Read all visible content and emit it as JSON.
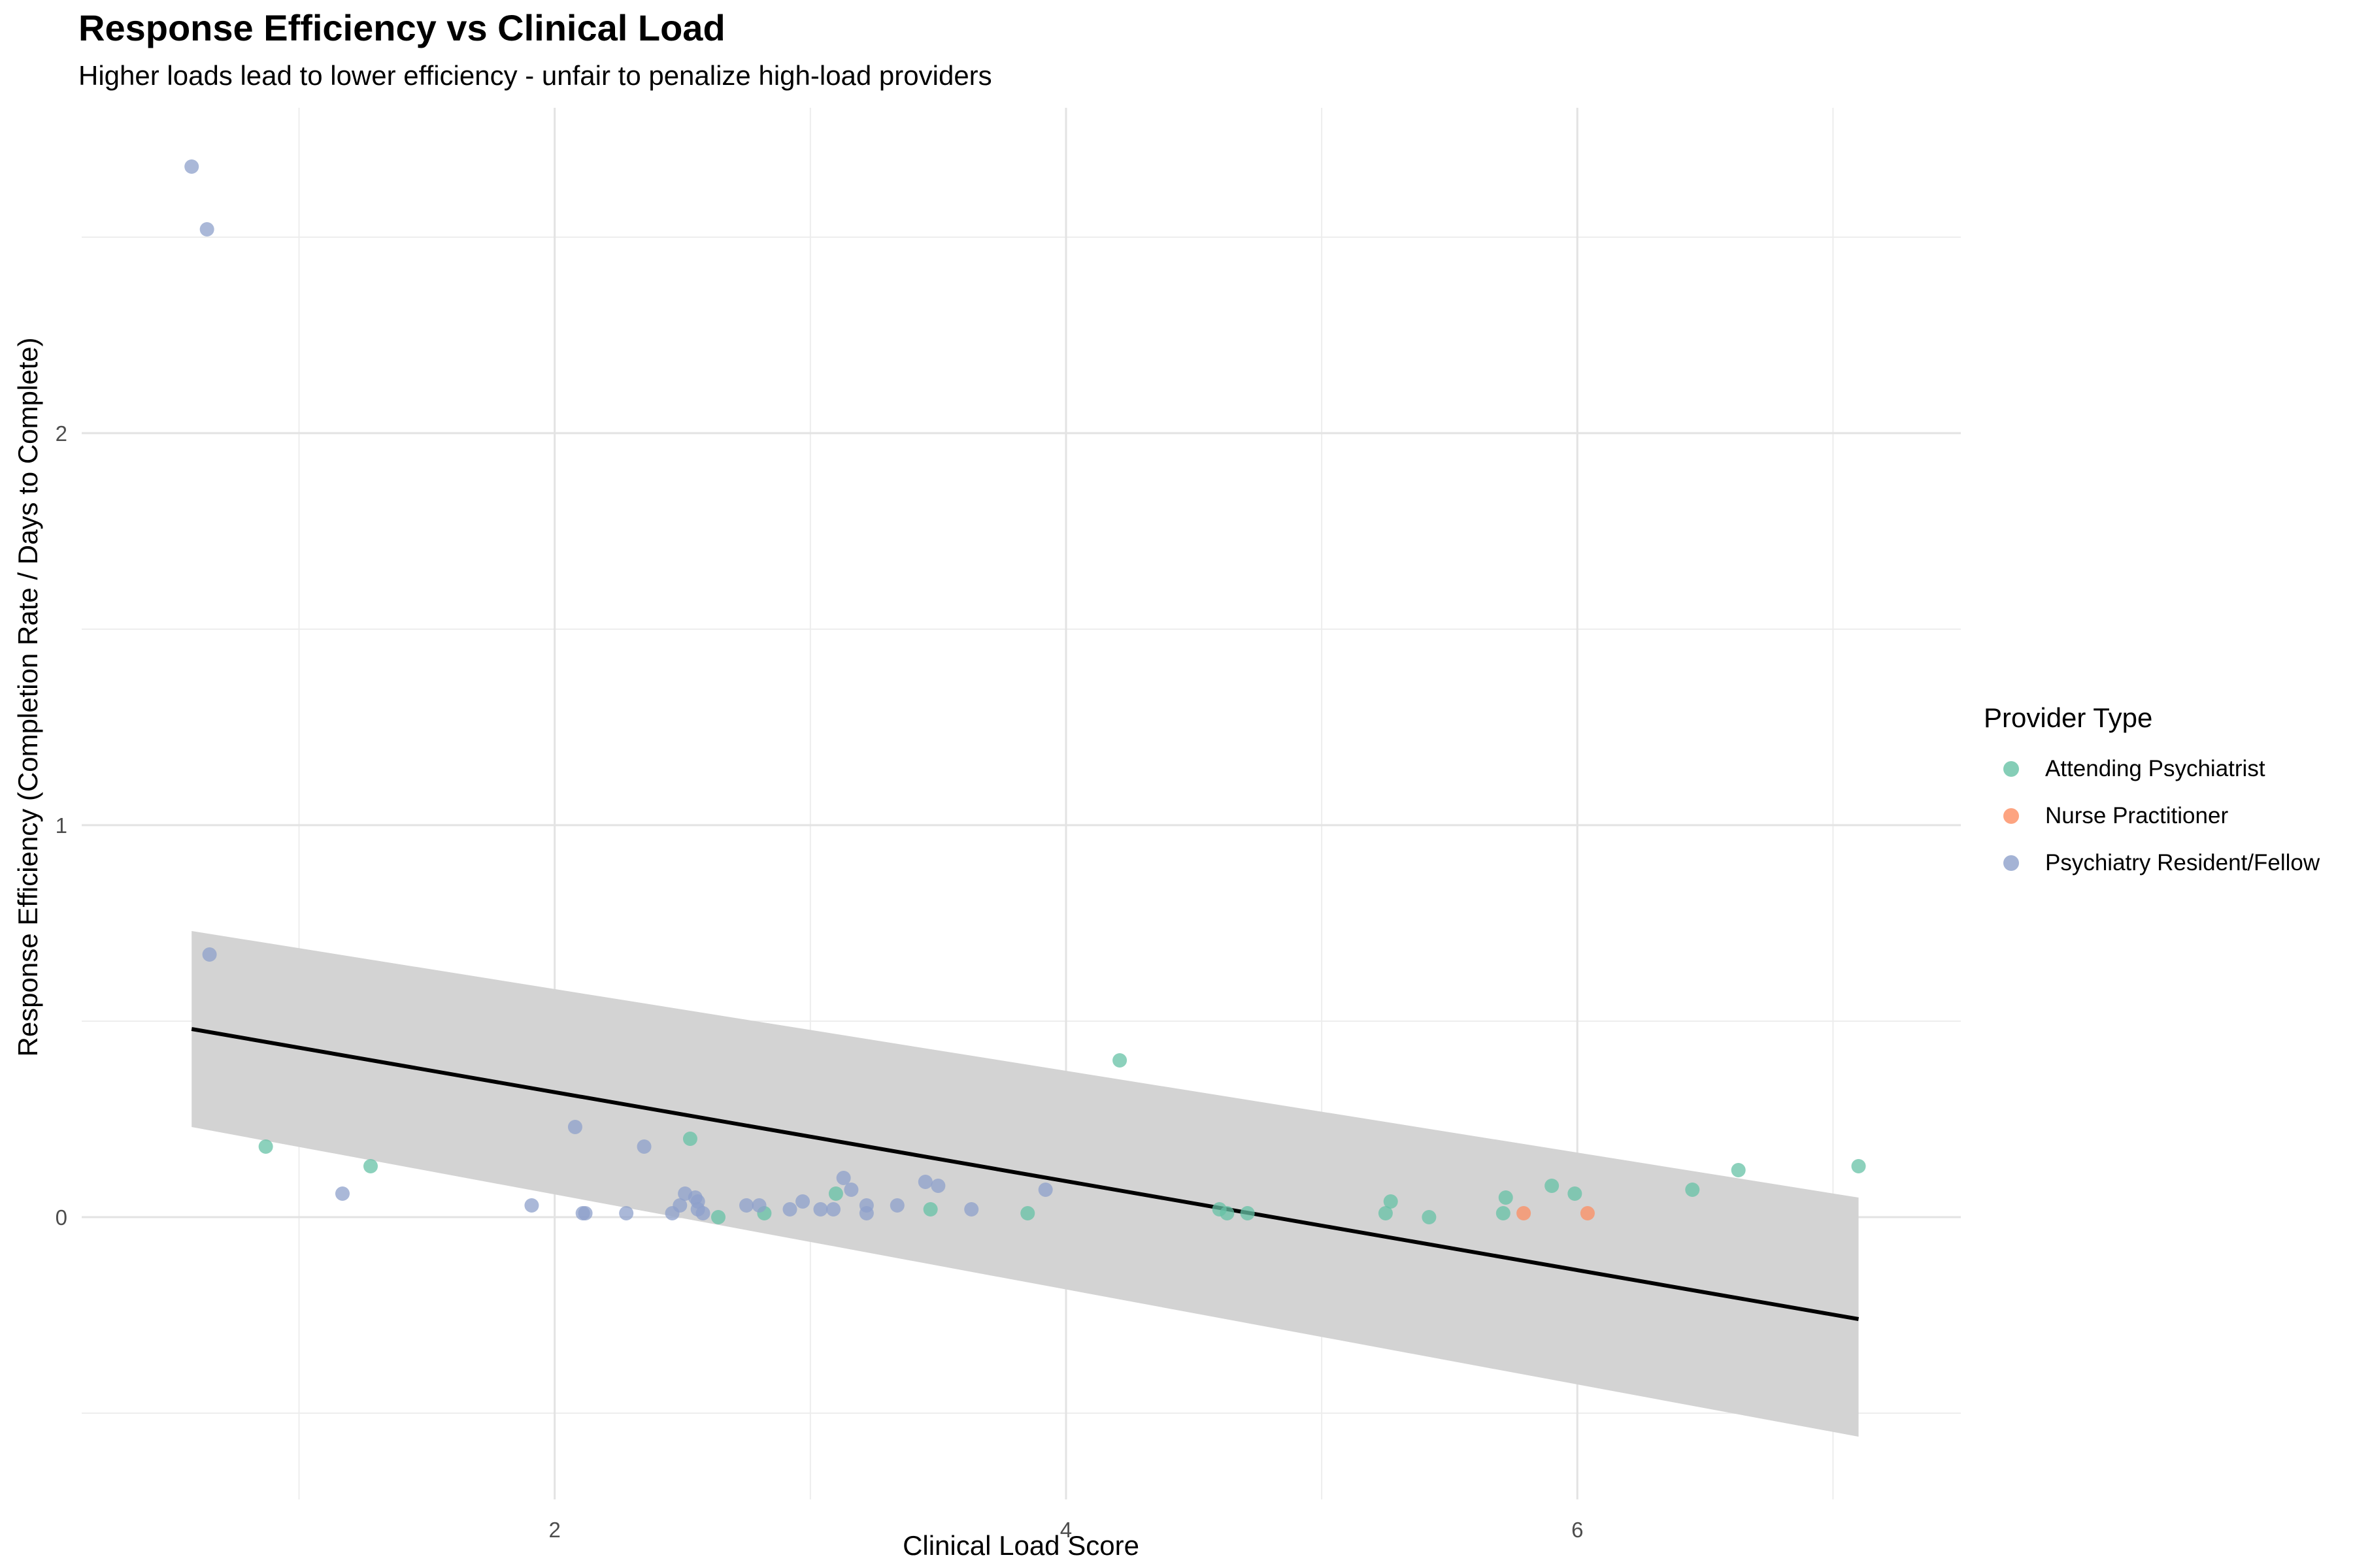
{
  "chart_data": {
    "type": "scatter",
    "title": "Response Efficiency vs Clinical Load",
    "subtitle": "Higher loads lead to lower efficiency - unfair to penalize high-load providers",
    "xlabel": "Clinical Load Score",
    "ylabel": "Response Efficiency (Completion Rate / Days to Complete)",
    "xlim": [
      0.15,
      7.5
    ],
    "ylim": [
      -0.72,
      2.83
    ],
    "x_ticks": [
      2,
      4,
      6
    ],
    "x_tick_labels": [
      "2",
      "4",
      "6"
    ],
    "x_minor_ticks": [
      1,
      3,
      5,
      7
    ],
    "y_ticks": [
      0,
      1,
      2
    ],
    "y_tick_labels": [
      "0",
      "1",
      "2"
    ],
    "y_minor_ticks": [
      -0.5,
      0.5,
      1.5,
      2.5
    ],
    "grid": true,
    "legend": {
      "title": "Provider Type",
      "placement": "right"
    },
    "series": [
      {
        "name": "Attending Psychiatrist",
        "color": "#66c2a5",
        "points": [
          {
            "x": 0.87,
            "y": 0.18
          },
          {
            "x": 1.28,
            "y": 0.13
          },
          {
            "x": 2.53,
            "y": 0.2
          },
          {
            "x": 2.64,
            "y": 0.0
          },
          {
            "x": 2.82,
            "y": 0.01
          },
          {
            "x": 3.1,
            "y": 0.06
          },
          {
            "x": 3.47,
            "y": 0.02
          },
          {
            "x": 3.85,
            "y": 0.01
          },
          {
            "x": 4.21,
            "y": 0.4
          },
          {
            "x": 4.6,
            "y": 0.02
          },
          {
            "x": 4.63,
            "y": 0.01
          },
          {
            "x": 4.71,
            "y": 0.01
          },
          {
            "x": 5.25,
            "y": 0.01
          },
          {
            "x": 5.27,
            "y": 0.04
          },
          {
            "x": 5.42,
            "y": 0.0
          },
          {
            "x": 5.71,
            "y": 0.01
          },
          {
            "x": 5.72,
            "y": 0.05
          },
          {
            "x": 5.9,
            "y": 0.08
          },
          {
            "x": 5.99,
            "y": 0.06
          },
          {
            "x": 6.45,
            "y": 0.07
          },
          {
            "x": 6.63,
            "y": 0.12
          },
          {
            "x": 7.1,
            "y": 0.13
          }
        ]
      },
      {
        "name": "Nurse Practitioner",
        "color": "#fc8d62",
        "points": [
          {
            "x": 5.79,
            "y": 0.01
          },
          {
            "x": 6.04,
            "y": 0.01
          }
        ]
      },
      {
        "name": "Psychiatry Resident/Fellow",
        "color": "#8da0cb",
        "points": [
          {
            "x": 0.58,
            "y": 2.68
          },
          {
            "x": 0.64,
            "y": 2.52
          },
          {
            "x": 0.65,
            "y": 0.67
          },
          {
            "x": 1.17,
            "y": 0.06
          },
          {
            "x": 1.91,
            "y": 0.03
          },
          {
            "x": 2.08,
            "y": 0.23
          },
          {
            "x": 2.11,
            "y": 0.01
          },
          {
            "x": 2.12,
            "y": 0.01
          },
          {
            "x": 2.28,
            "y": 0.01
          },
          {
            "x": 2.35,
            "y": 0.18
          },
          {
            "x": 2.46,
            "y": 0.01
          },
          {
            "x": 2.49,
            "y": 0.03
          },
          {
            "x": 2.51,
            "y": 0.06
          },
          {
            "x": 2.55,
            "y": 0.05
          },
          {
            "x": 2.56,
            "y": 0.04
          },
          {
            "x": 2.56,
            "y": 0.02
          },
          {
            "x": 2.58,
            "y": 0.01
          },
          {
            "x": 2.75,
            "y": 0.03
          },
          {
            "x": 2.8,
            "y": 0.03
          },
          {
            "x": 2.92,
            "y": 0.02
          },
          {
            "x": 2.97,
            "y": 0.04
          },
          {
            "x": 3.04,
            "y": 0.02
          },
          {
            "x": 3.09,
            "y": 0.02
          },
          {
            "x": 3.13,
            "y": 0.1
          },
          {
            "x": 3.16,
            "y": 0.07
          },
          {
            "x": 3.22,
            "y": 0.01
          },
          {
            "x": 3.22,
            "y": 0.03
          },
          {
            "x": 3.34,
            "y": 0.03
          },
          {
            "x": 3.45,
            "y": 0.09
          },
          {
            "x": 3.5,
            "y": 0.08
          },
          {
            "x": 3.63,
            "y": 0.02
          },
          {
            "x": 3.92,
            "y": 0.07
          }
        ]
      }
    ],
    "trend": {
      "method": "linear",
      "x_start": 0.58,
      "x_end": 7.1,
      "y_start": 0.48,
      "y_end": -0.26,
      "ci_low_start": 0.23,
      "ci_high_start": 0.73,
      "ci_low_end": -0.56,
      "ci_high_end": 0.05
    }
  }
}
